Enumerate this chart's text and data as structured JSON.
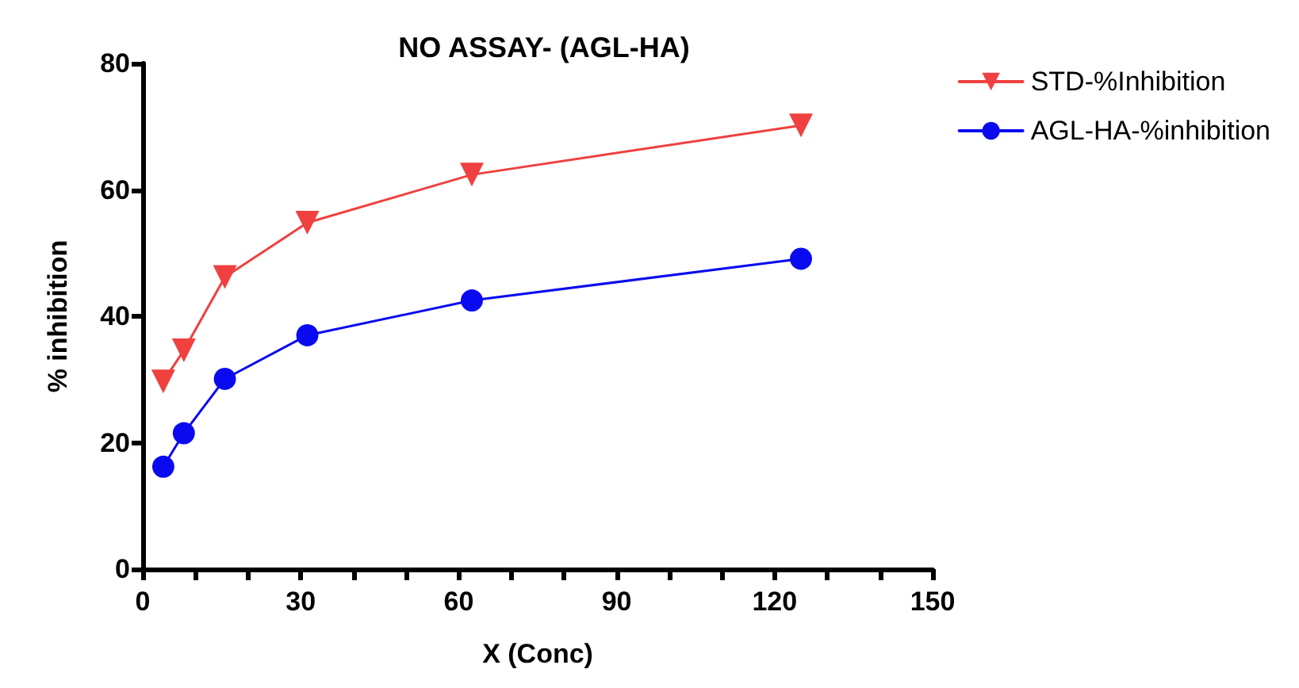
{
  "chart_data": {
    "type": "line",
    "title": "NO ASSAY- (AGL-HA)",
    "xlabel": "X (Conc)",
    "ylabel": "% inhibition",
    "x": [
      3.9,
      7.8,
      15.6,
      31.25,
      62.5,
      125
    ],
    "series": [
      {
        "name": "STD-%Inhibition",
        "color": "#f04040",
        "marker": "triangle",
        "values": [
          29.7,
          34.6,
          46.2,
          54.8,
          62.4,
          70.2
        ]
      },
      {
        "name": "AGL-HA-%inhibition",
        "color": "#0a0af0",
        "marker": "circle",
        "values": [
          16.2,
          21.5,
          30.1,
          37,
          42.5,
          49.1
        ]
      }
    ],
    "xlim": [
      0,
      150
    ],
    "xticks": [
      0,
      {
        "value": 10,
        "label": null
      },
      {
        "value": 20,
        "label": null
      },
      30,
      {
        "value": 40,
        "label": null
      },
      {
        "value": 50,
        "label": null
      },
      60,
      {
        "value": 70,
        "label": null
      },
      {
        "value": 80,
        "label": null
      },
      90,
      {
        "value": 100,
        "label": null
      },
      {
        "value": 110,
        "label": null
      },
      120,
      {
        "value": 130,
        "label": null
      },
      {
        "value": 140,
        "label": null
      },
      150
    ],
    "ylim": [
      0,
      80
    ],
    "yticks": [
      0,
      20,
      40,
      60,
      80
    ],
    "grid": false,
    "legend": "top right",
    "line_style": "solid"
  }
}
